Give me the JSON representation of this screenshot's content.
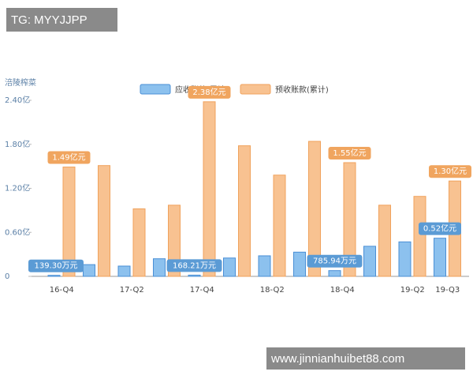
{
  "header": {
    "tag": "TG: MYYJJPP"
  },
  "footer": {
    "url": "www.jinnianhuibet88.com"
  },
  "chart_data": {
    "type": "bar",
    "y_label": "涪陵榨菜",
    "categories": [
      "16-Q4",
      null,
      "17-Q2",
      null,
      "17-Q4",
      null,
      "18-Q2",
      null,
      "18-Q4",
      null,
      "19-Q2",
      "19-Q3"
    ],
    "series": [
      {
        "name": "应收账款(累计)",
        "color": "#8cc1ee",
        "values": [
          0.01393,
          0.16,
          0.14,
          0.24,
          0.016821,
          0.25,
          0.28,
          0.33,
          0.078594,
          0.41,
          0.47,
          0.52
        ],
        "value_labels": [
          "139.30万元",
          null,
          null,
          null,
          "168.21万元",
          null,
          null,
          null,
          "785.94万元",
          null,
          null,
          "0.52亿元"
        ]
      },
      {
        "name": "预收账款(累计)",
        "color": "#f8c291",
        "values": [
          1.49,
          1.51,
          0.92,
          0.97,
          2.38,
          1.78,
          1.38,
          1.84,
          1.55,
          0.97,
          1.09,
          1.3
        ],
        "value_labels": [
          "1.49亿元",
          null,
          null,
          null,
          "2.38亿元",
          null,
          null,
          null,
          "1.55亿元",
          null,
          null,
          "1.30亿元"
        ]
      }
    ],
    "ylim": [
      0,
      2.4
    ],
    "yticks": [
      0,
      {
        "value": 0.6,
        "label": "0.60亿"
      },
      {
        "value": 1.2,
        "label": "1.20亿"
      },
      {
        "value": 1.8,
        "label": "1.80亿"
      },
      {
        "value": 2.4,
        "label": "2.40亿"
      }
    ]
  }
}
